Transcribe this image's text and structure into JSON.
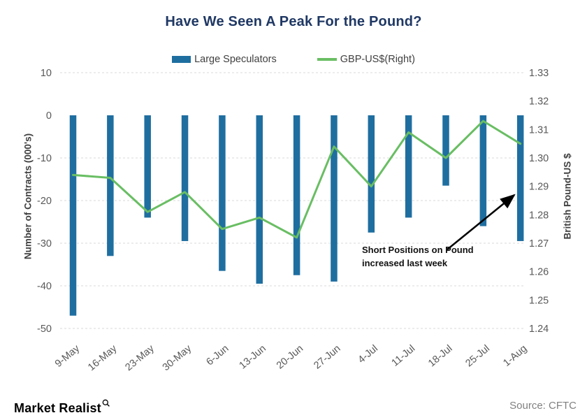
{
  "title": "Have We Seen A Peak For the Pound?",
  "legend": [
    {
      "label": "Large Speculators"
    },
    {
      "label": "GBP-US$(Right)"
    }
  ],
  "annotation": {
    "line1": "Short Positions on Pound",
    "line2": "increased last week"
  },
  "footer": {
    "brand": "Market Realist",
    "source": "Source: CFTC"
  },
  "colors": {
    "title": "#1f3864",
    "bar": "#1f6ea0",
    "line": "#69be63",
    "tick": "#595959",
    "grid": "#d9d9d9",
    "axis_title": "#404040",
    "annotation": "#111111",
    "arrow": "#000000",
    "source": "#808080"
  },
  "chart_data": {
    "type": "bar",
    "subtype": "bar+line combo, dual axis",
    "title": "Have We Seen A Peak For the Pound?",
    "categories": [
      "9-May",
      "16-May",
      "23-May",
      "30-May",
      "6-Jun",
      "13-Jun",
      "20-Jun",
      "27-Jun",
      "4-Jul",
      "11-Jul",
      "18-Jul",
      "25-Jul",
      "1-Aug"
    ],
    "series": [
      {
        "name": "Large Speculators",
        "type": "bar",
        "axis": "left",
        "color": "#1f6ea0",
        "values": [
          -47,
          -33,
          -24,
          -29.5,
          -36.5,
          -39.5,
          -37.5,
          -39,
          -27.5,
          -24,
          -16.5,
          -26,
          -29.5
        ]
      },
      {
        "name": "GBP-US$(Right)",
        "type": "line",
        "axis": "right",
        "color": "#69be63",
        "values": [
          1.294,
          1.293,
          1.281,
          1.288,
          1.275,
          1.279,
          1.272,
          1.304,
          1.29,
          1.309,
          1.3,
          1.313,
          1.305
        ]
      }
    ],
    "left_axis": {
      "label": "Number of Contracts (000's)",
      "min": -50,
      "max": 10,
      "ticks": [
        10,
        0,
        -10,
        -20,
        -30,
        -40,
        -50
      ]
    },
    "right_axis": {
      "label": "British Pound-US $",
      "min": 1.24,
      "max": 1.33,
      "ticks": [
        "1.33",
        "1.32",
        "1.31",
        "1.30",
        "1.29",
        "1.28",
        "1.27",
        "1.26",
        "1.25",
        "1.24"
      ]
    },
    "grid": "horizontal dashed",
    "legend_position": "top center"
  }
}
